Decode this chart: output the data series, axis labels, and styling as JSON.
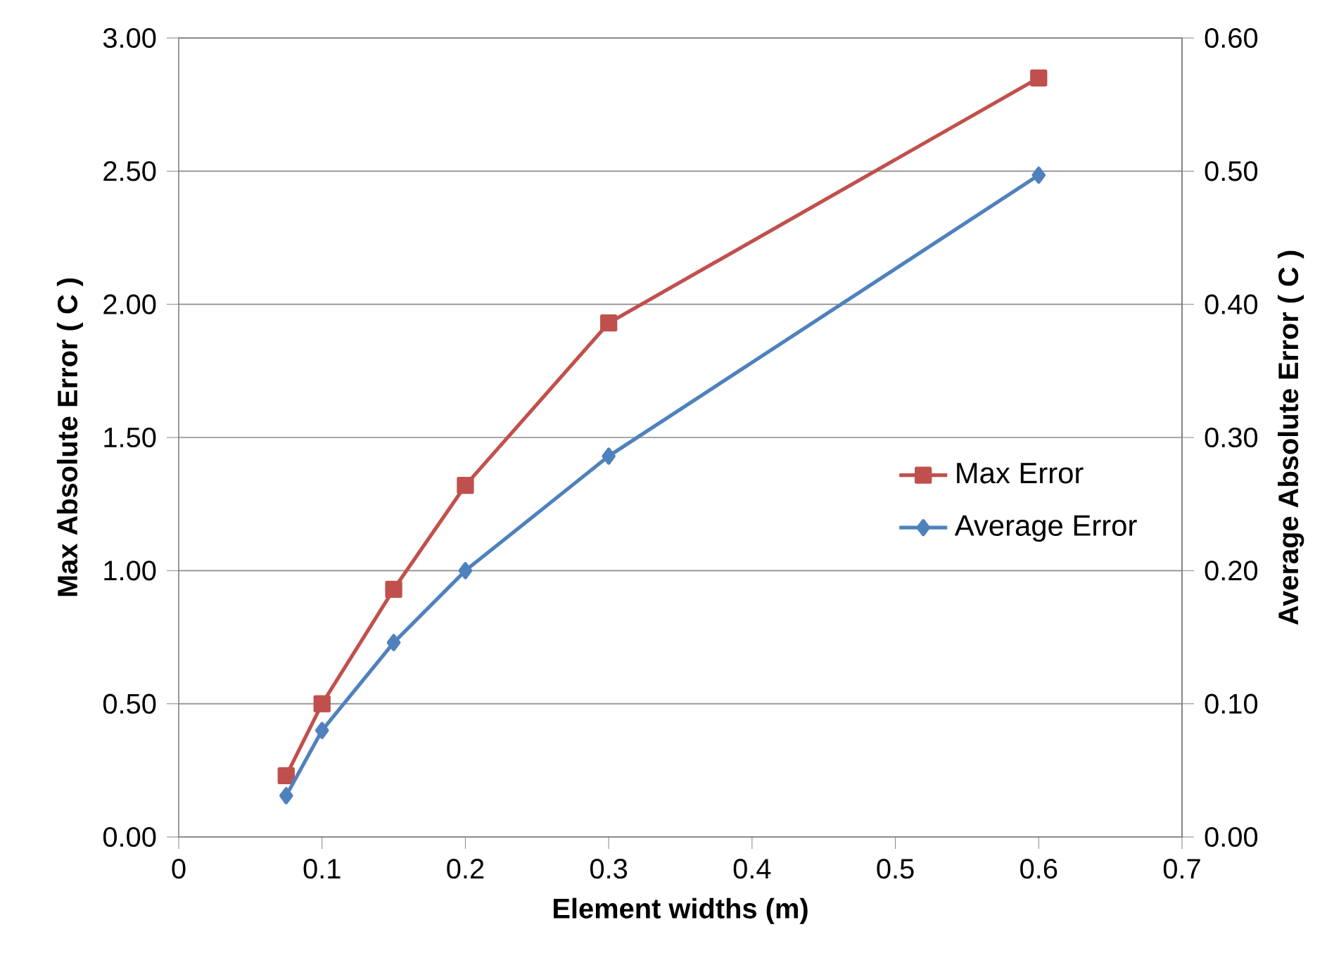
{
  "chart_data": {
    "type": "line",
    "xlabel": "Element widths (m)",
    "ylabel": "Max Absolute Error ( C )",
    "y2label": "Average Absolute Error ( C )",
    "series": [
      {
        "name": "Max Error",
        "color": "#c0504d",
        "marker": "square",
        "x": [
          0.075,
          0.1,
          0.15,
          0.2,
          0.3,
          0.6
        ],
        "values": [
          0.23,
          0.5,
          0.93,
          1.32,
          1.93,
          2.85
        ]
      },
      {
        "name": "Average Error",
        "color": "#4f81bd",
        "marker": "diamond",
        "axis": "y2",
        "x": [
          0.075,
          0.1,
          0.15,
          0.2,
          0.3,
          0.6
        ],
        "values": [
          0.031,
          0.08,
          0.146,
          0.2,
          0.286,
          0.497
        ]
      }
    ],
    "xlim": [
      0,
      0.7
    ],
    "xticks": [
      0,
      0.1,
      0.2,
      0.3,
      0.4,
      0.5,
      0.6,
      0.7
    ],
    "ylim": [
      0,
      3
    ],
    "yticks": [
      {
        "value": 0,
        "label": "0.00"
      },
      {
        "value": 0.5,
        "label": "0.50"
      },
      {
        "value": 1,
        "label": "1.00"
      },
      {
        "value": 1.5,
        "label": "1.50"
      },
      {
        "value": 2,
        "label": "2.00"
      },
      {
        "value": 2.5,
        "label": "2.50"
      },
      {
        "value": 3,
        "label": "3.00"
      }
    ],
    "y2lim": [
      0,
      0.6
    ],
    "y2ticks": [
      {
        "value": 0,
        "label": "0.00"
      },
      {
        "value": 0.1,
        "label": "0.10"
      },
      {
        "value": 0.2,
        "label": "0.20"
      },
      {
        "value": 0.3,
        "label": "0.30"
      },
      {
        "value": 0.4,
        "label": "0.40"
      },
      {
        "value": 0.5,
        "label": "0.50"
      },
      {
        "value": 0.6,
        "label": "0.60"
      }
    ],
    "grid": "y",
    "legend": "right",
    "line_style": "solid"
  }
}
